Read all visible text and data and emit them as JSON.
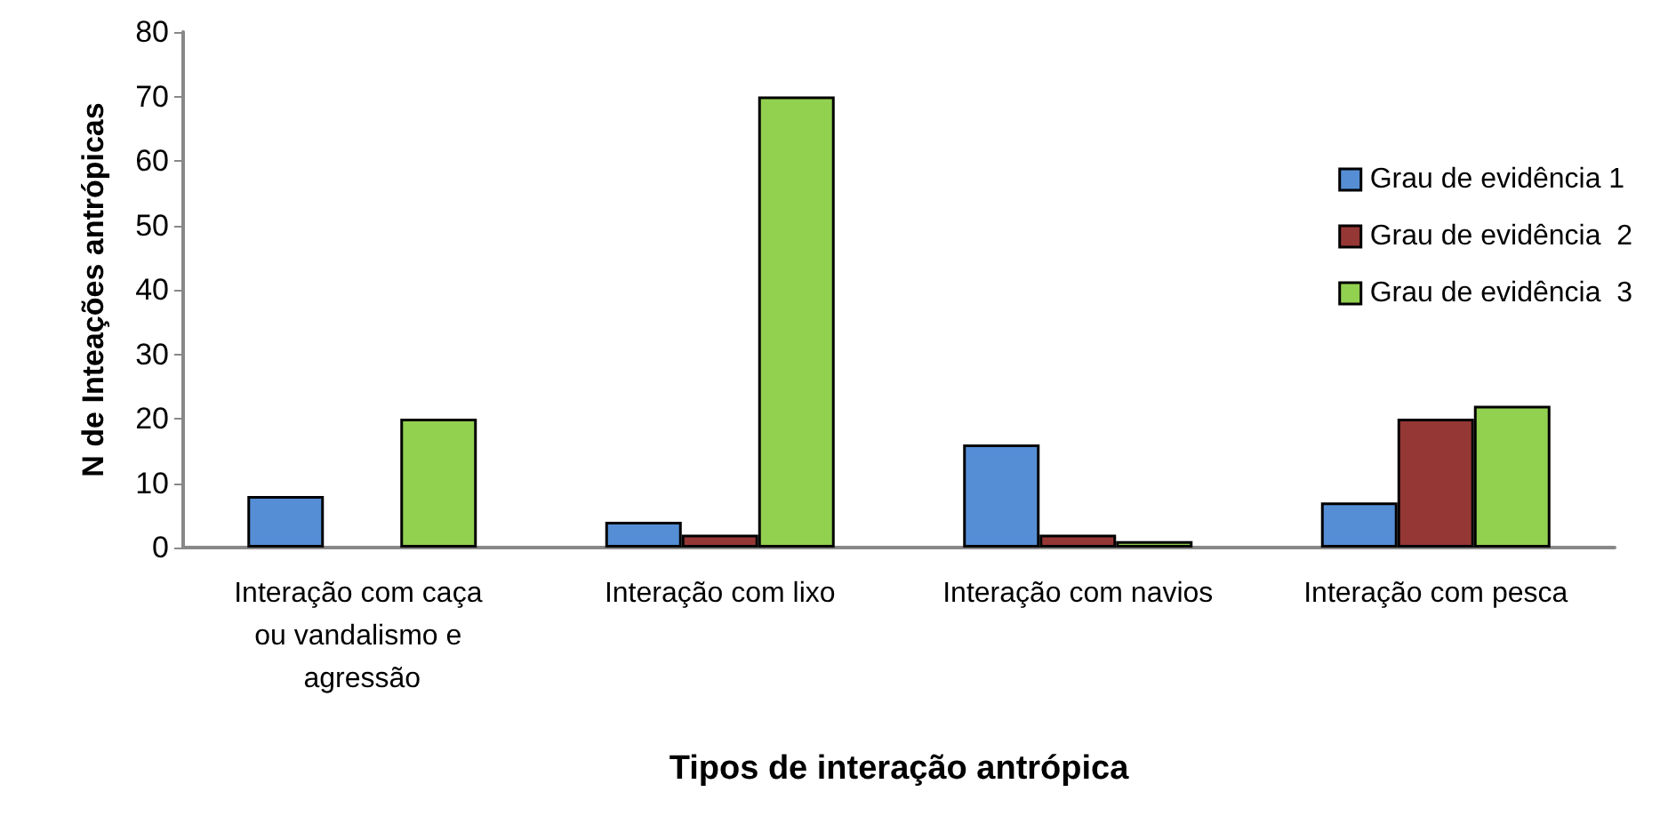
{
  "chart_data": {
    "type": "bar",
    "xlabel": "Tipos de interação antrópica",
    "ylabel": "N de Inteações antrópicas",
    "categories": [
      "Interação com caça ou vandalismo e agressão",
      "Interação com lixo",
      "Interação com navios",
      "Interação com pesca"
    ],
    "series": [
      {
        "name": "Grau de evidência 1",
        "color": "#558ed5",
        "values": [
          8,
          4,
          16,
          7
        ]
      },
      {
        "name": "Grau de evidência  2",
        "color": "#953735",
        "values": [
          null,
          2,
          2,
          20
        ]
      },
      {
        "name": "Grau de evidência  3",
        "color": "#92d050",
        "values": [
          20,
          70,
          1,
          22
        ]
      }
    ],
    "ylim": [
      0,
      80
    ],
    "yticks": [
      0,
      10,
      20,
      30,
      40,
      50,
      60,
      70,
      80
    ],
    "grid": false,
    "legend": "right"
  }
}
